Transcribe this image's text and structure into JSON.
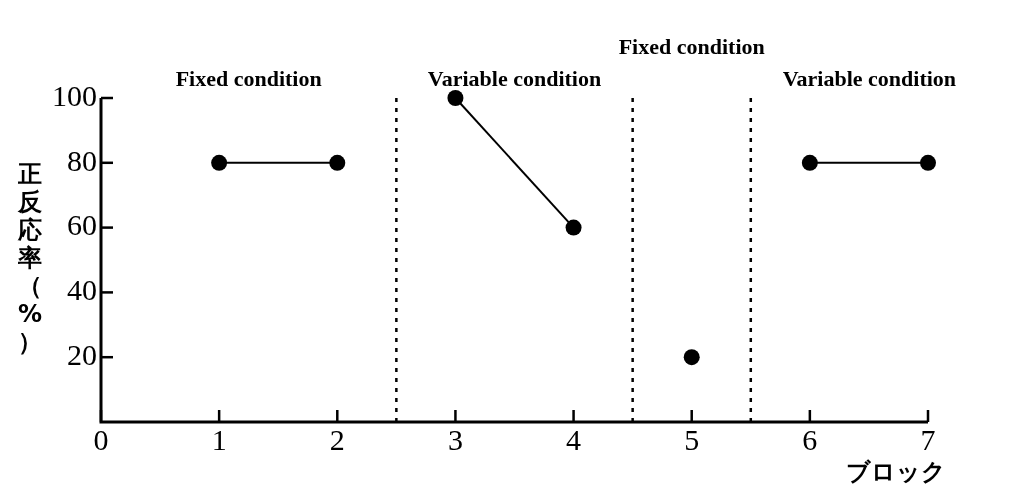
{
  "chart_data": {
    "type": "line",
    "xlabel": "ブロック",
    "ylabel": "正反応率（%）",
    "xlim": [
      0,
      7
    ],
    "xticks": [
      0,
      1,
      2,
      3,
      4,
      5,
      6,
      7
    ],
    "ylim": [
      0,
      100
    ],
    "yticks": [
      20,
      40,
      60,
      80,
      100
    ],
    "series": [
      {
        "color": "#000000",
        "x": [
          1,
          2
        ],
        "values": [
          80,
          80
        ]
      },
      {
        "color": "#000000",
        "x": [
          3,
          4
        ],
        "values": [
          100,
          60
        ]
      },
      {
        "color": "#000000",
        "x": [
          5
        ],
        "values": [
          20
        ]
      },
      {
        "color": "#000000",
        "x": [
          6,
          7
        ],
        "values": [
          80,
          80
        ]
      }
    ],
    "ref_lines": [
      {
        "axis": "x",
        "value": 2.5,
        "color": "#000000",
        "line_style": "dotted"
      },
      {
        "axis": "x",
        "value": 4.5,
        "color": "#000000",
        "line_style": "dotted"
      },
      {
        "axis": "x",
        "value": 5.5,
        "color": "#000000",
        "line_style": "dotted"
      }
    ],
    "annotations": [
      "Fixed condition",
      "Variable condition",
      "Fixed condition",
      "Variable condition"
    ],
    "marker": "circle",
    "line_style": "solid",
    "grid": false,
    "legend": false
  }
}
